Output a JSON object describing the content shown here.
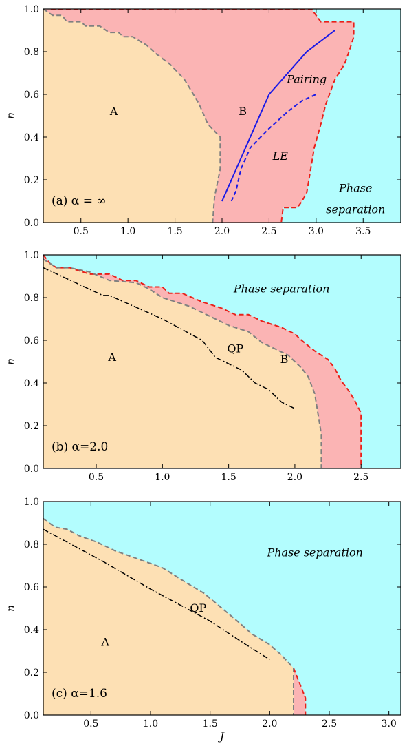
{
  "chart_data": [
    {
      "type": "area",
      "panel_label": "(a) α = ∞",
      "xlabel": "",
      "ylabel": "n",
      "xlim": [
        0.1,
        3.9
      ],
      "ylim": [
        0,
        1.0
      ],
      "xticks": [
        0.5,
        1.0,
        1.5,
        2.0,
        2.5,
        3.0,
        3.5
      ],
      "xtick_labels": [
        "0.5",
        "1.0",
        "1.5",
        "2.0",
        "2.5",
        "3.0",
        "3.5"
      ],
      "yticks": [
        0,
        0.2,
        0.4,
        0.6,
        0.8,
        1.0
      ],
      "ytick_labels": [
        "0.0",
        "0.2",
        "0.4",
        "0.6",
        "0.8",
        "1.0"
      ],
      "colors": {
        "A": "#fde0b4",
        "B": "#fbb4b4",
        "PS": "#b3fdfe",
        "boundary_AB": "#808080",
        "boundary_B_PS": "#e8201a",
        "pairing": "#1a1ae6",
        "le": "#1a1ae6"
      },
      "regions": [
        {
          "name": "A",
          "boundary": [
            [
              0.1,
              1.0
            ],
            [
              0.2,
              0.97
            ],
            [
              0.3,
              0.97
            ],
            [
              0.35,
              0.94
            ],
            [
              0.5,
              0.94
            ],
            [
              0.55,
              0.92
            ],
            [
              0.7,
              0.92
            ],
            [
              0.8,
              0.89
            ],
            [
              0.9,
              0.89
            ],
            [
              0.95,
              0.87
            ],
            [
              1.05,
              0.87
            ],
            [
              1.2,
              0.83
            ],
            [
              1.3,
              0.79
            ],
            [
              1.45,
              0.74
            ],
            [
              1.6,
              0.67
            ],
            [
              1.75,
              0.56
            ],
            [
              1.85,
              0.46
            ],
            [
              1.98,
              0.4
            ],
            [
              1.98,
              0.25
            ],
            [
              1.92,
              0.12
            ],
            [
              1.9,
              0.0
            ]
          ]
        },
        {
          "name": "B",
          "boundary": [
            [
              0.18,
              1.0
            ],
            [
              2.95,
              1.0
            ],
            [
              3.05,
              0.94
            ],
            [
              3.3,
              0.94
            ],
            [
              3.4,
              0.94
            ],
            [
              3.4,
              0.87
            ],
            [
              3.35,
              0.8
            ],
            [
              3.3,
              0.74
            ],
            [
              3.2,
              0.67
            ],
            [
              3.1,
              0.55
            ],
            [
              3.05,
              0.46
            ],
            [
              2.98,
              0.35
            ],
            [
              2.95,
              0.27
            ],
            [
              2.9,
              0.14
            ],
            [
              2.85,
              0.1
            ],
            [
              2.8,
              0.07
            ],
            [
              2.65,
              0.07
            ],
            [
              2.63,
              0.0
            ]
          ]
        }
      ],
      "lines": [
        {
          "name": "Pairing",
          "style": "solid",
          "x": [
            2.0,
            2.5,
            2.9,
            3.2
          ],
          "y": [
            0.1,
            0.6,
            0.8,
            0.9
          ]
        },
        {
          "name": "LE",
          "style": "dashed",
          "x": [
            2.1,
            2.15,
            2.2,
            2.3,
            2.5,
            2.7,
            2.85,
            3.0
          ],
          "y": [
            0.1,
            0.15,
            0.25,
            0.35,
            0.44,
            0.52,
            0.57,
            0.6
          ]
        }
      ],
      "annotations": [
        {
          "text": "A",
          "x": 0.85,
          "y": 0.52,
          "style": "normal"
        },
        {
          "text": "B",
          "x": 2.22,
          "y": 0.52,
          "style": "normal"
        },
        {
          "text": "Pairing",
          "x": 2.9,
          "y": 0.67,
          "style": "italic"
        },
        {
          "text": "LE",
          "x": 2.62,
          "y": 0.31,
          "style": "italic"
        },
        {
          "text": "Phase",
          "x": 3.42,
          "y": 0.16,
          "style": "italic"
        },
        {
          "text": "separation",
          "x": 3.42,
          "y": 0.06,
          "style": "italic"
        }
      ]
    },
    {
      "type": "area",
      "panel_label": "(b) α=2.0",
      "xlabel": "",
      "ylabel": "n",
      "xlim": [
        0.1,
        2.8
      ],
      "ylim": [
        0,
        1.0
      ],
      "xticks": [
        0.5,
        1.0,
        1.5,
        2.0,
        2.5
      ],
      "xtick_labels": [
        "0.5",
        "1.0",
        "1.5",
        "2.0",
        "2.5"
      ],
      "yticks": [
        0,
        0.2,
        0.4,
        0.6,
        0.8,
        1.0
      ],
      "ytick_labels": [
        "0.0",
        "0.2",
        "0.4",
        "0.6",
        "0.8",
        "1.0"
      ],
      "colors": {
        "A": "#fde0b4",
        "B": "#fbb4b4",
        "PS": "#b3fdfe",
        "boundary_AB": "#808080",
        "boundary_B_PS": "#e8201a",
        "qp": "#000000"
      },
      "regions": [
        {
          "name": "A",
          "boundary": [
            [
              0.1,
              0.98
            ],
            [
              0.2,
              0.94
            ],
            [
              0.3,
              0.94
            ],
            [
              0.45,
              0.92
            ],
            [
              0.6,
              0.88
            ],
            [
              0.8,
              0.87
            ],
            [
              0.9,
              0.84
            ],
            [
              1.0,
              0.8
            ],
            [
              1.2,
              0.76
            ],
            [
              1.4,
              0.7
            ],
            [
              1.5,
              0.67
            ],
            [
              1.65,
              0.64
            ],
            [
              1.75,
              0.59
            ],
            [
              1.85,
              0.56
            ],
            [
              1.95,
              0.53
            ],
            [
              2.05,
              0.47
            ],
            [
              2.1,
              0.43
            ],
            [
              2.15,
              0.35
            ],
            [
              2.2,
              0.16
            ],
            [
              2.2,
              0.0
            ]
          ]
        },
        {
          "name": "B",
          "boundary": [
            [
              0.1,
              1.0
            ],
            [
              0.15,
              0.96
            ],
            [
              0.2,
              0.94
            ],
            [
              0.3,
              0.94
            ],
            [
              0.45,
              0.91
            ],
            [
              0.6,
              0.91
            ],
            [
              0.7,
              0.88
            ],
            [
              0.8,
              0.88
            ],
            [
              0.9,
              0.85
            ],
            [
              1.0,
              0.85
            ],
            [
              1.05,
              0.82
            ],
            [
              1.15,
              0.82
            ],
            [
              1.3,
              0.78
            ],
            [
              1.45,
              0.75
            ],
            [
              1.55,
              0.72
            ],
            [
              1.65,
              0.72
            ],
            [
              1.75,
              0.69
            ],
            [
              1.9,
              0.66
            ],
            [
              2.0,
              0.63
            ],
            [
              2.05,
              0.6
            ],
            [
              2.15,
              0.55
            ],
            [
              2.25,
              0.51
            ],
            [
              2.3,
              0.47
            ],
            [
              2.35,
              0.41
            ],
            [
              2.4,
              0.37
            ],
            [
              2.45,
              0.32
            ],
            [
              2.5,
              0.26
            ],
            [
              2.5,
              0.0
            ]
          ]
        }
      ],
      "lines": [
        {
          "name": "QP",
          "style": "dashdot",
          "x": [
            0.1,
            0.55,
            0.6,
            1.0,
            1.3,
            1.4,
            1.6,
            1.7,
            1.8,
            1.9,
            2.0
          ],
          "y": [
            0.94,
            0.81,
            0.81,
            0.7,
            0.6,
            0.52,
            0.46,
            0.4,
            0.37,
            0.31,
            0.28
          ]
        }
      ],
      "annotations": [
        {
          "text": "A",
          "x": 0.62,
          "y": 0.52,
          "style": "normal"
        },
        {
          "text": "QP",
          "x": 1.55,
          "y": 0.56,
          "style": "normal"
        },
        {
          "text": "B",
          "x": 1.92,
          "y": 0.51,
          "style": "normal"
        },
        {
          "text": "Phase separation",
          "x": 1.9,
          "y": 0.84,
          "style": "italic"
        }
      ]
    },
    {
      "type": "area",
      "panel_label": "(c) α=1.6",
      "xlabel": "J",
      "ylabel": "n",
      "xlim": [
        0.1,
        3.1
      ],
      "ylim": [
        0,
        1.0
      ],
      "xticks": [
        0.5,
        1.0,
        1.5,
        2.0,
        2.5,
        3.0
      ],
      "xtick_labels": [
        "0.5",
        "1.0",
        "1.5",
        "2.0",
        "2.5",
        "3.0"
      ],
      "yticks": [
        0,
        0.2,
        0.4,
        0.6,
        0.8,
        1.0
      ],
      "ytick_labels": [
        "0.0",
        "0.2",
        "0.4",
        "0.6",
        "0.8",
        "1.0"
      ],
      "colors": {
        "A": "#fde0b4",
        "B": "#fbb4b4",
        "PS": "#b3fdfe",
        "boundary_AB": "#808080",
        "boundary_B_PS": "#e8201a",
        "qp": "#000000"
      },
      "regions": [
        {
          "name": "A",
          "boundary": [
            [
              0.1,
              0.92
            ],
            [
              0.2,
              0.88
            ],
            [
              0.3,
              0.87
            ],
            [
              0.4,
              0.84
            ],
            [
              0.55,
              0.81
            ],
            [
              0.7,
              0.77
            ],
            [
              0.9,
              0.73
            ],
            [
              1.1,
              0.69
            ],
            [
              1.3,
              0.62
            ],
            [
              1.45,
              0.57
            ],
            [
              1.6,
              0.5
            ],
            [
              1.75,
              0.43
            ],
            [
              1.85,
              0.38
            ],
            [
              2.0,
              0.33
            ],
            [
              2.1,
              0.28
            ],
            [
              2.2,
              0.22
            ],
            [
              2.2,
              0.0
            ]
          ]
        },
        {
          "name": "B",
          "boundary": [
            [
              2.2,
              0.22
            ],
            [
              2.25,
              0.15
            ],
            [
              2.3,
              0.08
            ],
            [
              2.3,
              0.0
            ]
          ]
        }
      ],
      "lines": [
        {
          "name": "QP",
          "style": "dashdot",
          "x": [
            0.1,
            0.6,
            1.0,
            1.5,
            1.8,
            2.0
          ],
          "y": [
            0.87,
            0.72,
            0.59,
            0.44,
            0.33,
            0.26
          ]
        }
      ],
      "annotations": [
        {
          "text": "A",
          "x": 0.62,
          "y": 0.34,
          "style": "normal"
        },
        {
          "text": "QP",
          "x": 1.4,
          "y": 0.5,
          "style": "normal"
        },
        {
          "text": "Phase separation",
          "x": 2.38,
          "y": 0.76,
          "style": "italic"
        }
      ]
    }
  ]
}
